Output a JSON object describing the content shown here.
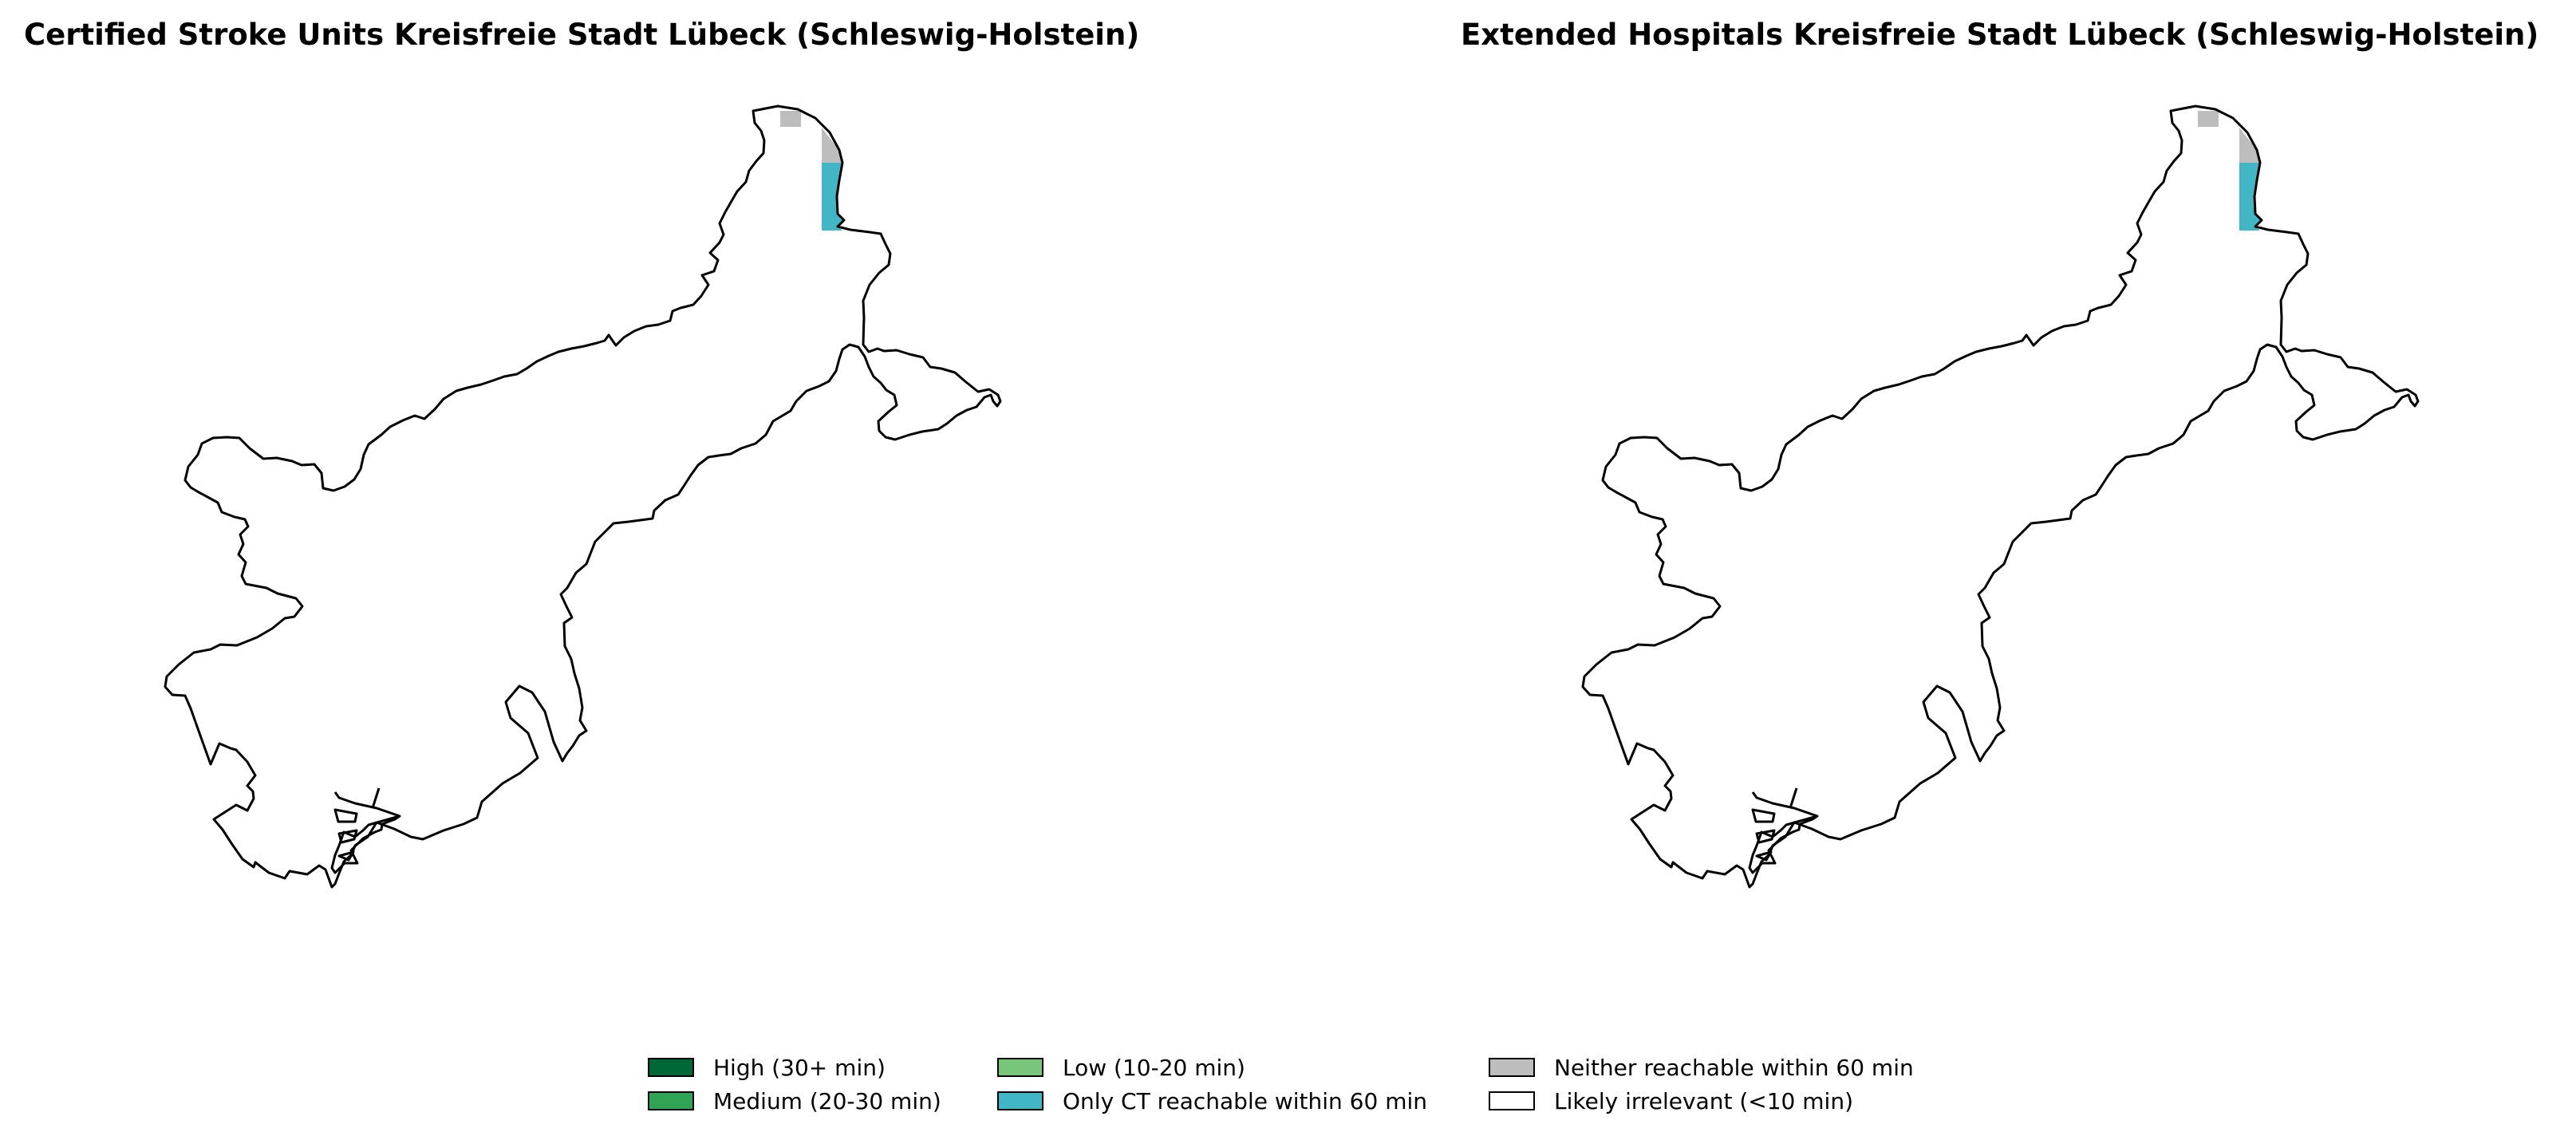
{
  "panels": [
    {
      "title": "Certified Stroke Units Kreisfreie Stadt Lübeck (Schleswig-Holstein)"
    },
    {
      "title": "Extended Hospitals Kreisfreie Stadt Lübeck (Schleswig-Holstein)"
    }
  ],
  "legend": {
    "items": [
      {
        "label": "High (30+ min)",
        "color": "#006837"
      },
      {
        "label": "Medium (20-30 min)",
        "color": "#31a354"
      },
      {
        "label": "Low (10-20 min)",
        "color": "#78c679"
      },
      {
        "label": "Only CT reachable within 60 min",
        "color": "#41b6c4"
      },
      {
        "label": "Neither reachable within 60 min",
        "color": "#bdbdbd"
      },
      {
        "label": "Likely irrelevant (<10 min)",
        "color": "#ffffff"
      }
    ]
  },
  "colors": {
    "outline": "#000000",
    "background": "#ffffff"
  }
}
